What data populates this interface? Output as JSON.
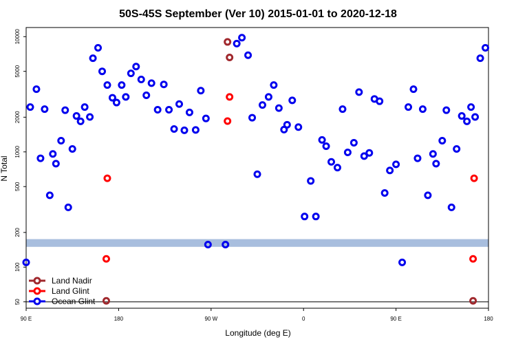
{
  "chart_data": {
    "type": "scatter",
    "title": "50S-45S September (Ver 10)   2015-01-01 to 2020-12-18",
    "xlabel": "Longitude (deg E)",
    "ylabel": "N Total",
    "x_tick_labels": [
      "90 E",
      "180",
      "90 W",
      "0",
      "90 E",
      "180"
    ],
    "x_ticks": [
      90,
      180,
      270,
      360,
      450,
      540
    ],
    "xlim": [
      90,
      540
    ],
    "y_scale": "log",
    "y_ticks": [
      50,
      100,
      200,
      500,
      1000,
      2000,
      5000,
      10000
    ],
    "y_tick_labels": [
      "50",
      "100",
      "200",
      "500",
      "1000",
      "2000",
      "5000",
      "10000"
    ],
    "ylim": [
      44,
      12000
    ],
    "grid": false,
    "reference_line_y": 50,
    "band": {
      "y_range": [
        150,
        175
      ],
      "color": "#a8bede"
    },
    "legend_position": "bottom-left",
    "series": [
      {
        "name": "Land Nadir",
        "color": "#a0282d",
        "points": [
          [
            168,
            51
          ],
          [
            525,
            51
          ],
          [
            286,
            9000
          ],
          [
            288,
            6600
          ]
        ]
      },
      {
        "name": "Land Glint",
        "color": "#ff0000",
        "points": [
          [
            169,
            590
          ],
          [
            168,
            118
          ],
          [
            526,
            590
          ],
          [
            525,
            118
          ],
          [
            286,
            1850
          ],
          [
            288,
            3000
          ]
        ]
      },
      {
        "name": "Ocean Glint",
        "color": "#0000ee",
        "points": [
          [
            90,
            110
          ],
          [
            94,
            2450
          ],
          [
            100,
            3500
          ],
          [
            104,
            880
          ],
          [
            108,
            2350
          ],
          [
            113,
            420
          ],
          [
            116,
            960
          ],
          [
            119,
            790
          ],
          [
            124,
            1250
          ],
          [
            128,
            2300
          ],
          [
            131,
            330
          ],
          [
            135,
            1060
          ],
          [
            139,
            2050
          ],
          [
            143,
            1840
          ],
          [
            147,
            2450
          ],
          [
            152,
            2010
          ],
          [
            155,
            6500
          ],
          [
            160,
            8000
          ],
          [
            164,
            5000
          ],
          [
            169,
            3800
          ],
          [
            174,
            2950
          ],
          [
            178,
            2680
          ],
          [
            183,
            3800
          ],
          [
            187,
            3000
          ],
          [
            192,
            4800
          ],
          [
            197,
            5500
          ],
          [
            202,
            4250
          ],
          [
            207,
            3100
          ],
          [
            212,
            3950
          ],
          [
            218,
            2320
          ],
          [
            224,
            3850
          ],
          [
            229,
            2320
          ],
          [
            234,
            1580
          ],
          [
            239,
            2600
          ],
          [
            244,
            1540
          ],
          [
            249,
            2200
          ],
          [
            255,
            1550
          ],
          [
            260,
            3400
          ],
          [
            265,
            1950
          ],
          [
            267,
            157
          ],
          [
            284,
            157
          ],
          [
            295,
            8700
          ],
          [
            300,
            9800
          ],
          [
            306,
            6900
          ],
          [
            310,
            1980
          ],
          [
            315,
            640
          ],
          [
            320,
            2550
          ],
          [
            326,
            3000
          ],
          [
            331,
            3800
          ],
          [
            336,
            2400
          ],
          [
            341,
            1560
          ],
          [
            344,
            1720
          ],
          [
            349,
            2800
          ],
          [
            355,
            1640
          ],
          [
            361,
            275
          ],
          [
            367,
            560
          ],
          [
            372,
            275
          ],
          [
            378,
            1270
          ],
          [
            382,
            1120
          ],
          [
            387,
            820
          ],
          [
            393,
            730
          ],
          [
            398,
            2350
          ],
          [
            403,
            990
          ],
          [
            409,
            1200
          ],
          [
            414,
            3300
          ],
          [
            419,
            920
          ],
          [
            424,
            980
          ],
          [
            429,
            2880
          ],
          [
            434,
            2750
          ],
          [
            439,
            440
          ],
          [
            444,
            690
          ],
          [
            450,
            780
          ],
          [
            456,
            110
          ],
          [
            462,
            2450
          ],
          [
            467,
            3500
          ],
          [
            471,
            880
          ],
          [
            476,
            2350
          ],
          [
            481,
            420
          ],
          [
            486,
            960
          ],
          [
            489,
            790
          ],
          [
            495,
            1250
          ],
          [
            499,
            2300
          ],
          [
            504,
            330
          ],
          [
            509,
            1060
          ],
          [
            514,
            2050
          ],
          [
            519,
            1840
          ],
          [
            523,
            2450
          ],
          [
            527,
            2010
          ],
          [
            532,
            6500
          ],
          [
            537,
            8000
          ]
        ]
      }
    ]
  }
}
